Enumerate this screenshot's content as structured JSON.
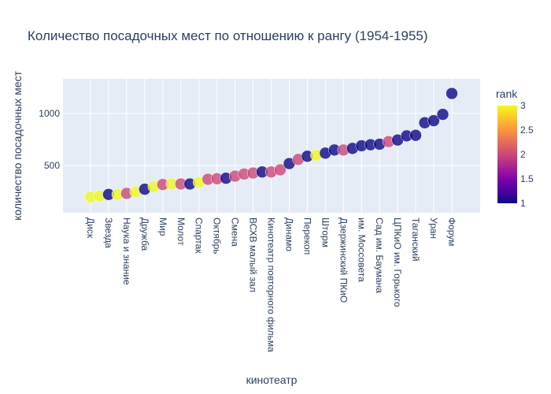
{
  "title": "Количество посадочных мест по отношению к рангу (1954-1955)",
  "chart_data": {
    "type": "scatter",
    "xlabel": "кинотеатр",
    "ylabel": "количество посадочных мест",
    "y_ticks": [
      500,
      1000
    ],
    "ylim": [
      50,
      1330
    ],
    "grid": true,
    "colorbar": {
      "title": "rank",
      "min": 1,
      "max": 3,
      "ticks": [
        "1",
        "1.5",
        "2",
        "2.5",
        "3"
      ],
      "colors": [
        "#0d0887",
        "#46039f",
        "#7201a8",
        "#9c179e",
        "#bd3786",
        "#d8576b",
        "#ed7953",
        "#fb9f3a",
        "#fdca26",
        "#f0f921"
      ]
    },
    "x_tick_labels": [
      "Диск",
      "Звезда",
      "Наука и знание",
      "Дружба",
      "Мир",
      "Молот",
      "Спартак",
      "Октябрь",
      "Смена",
      "ВСХВ малый зал",
      "Кинотеатр повторного фильма",
      "Динамо",
      "Перекоп",
      "Шторм",
      "Дзержинский ПКиО",
      "им. Моссовета",
      "Сад им. Баумана",
      "ЦПКиО им. Горького",
      "Таганский",
      "Уран",
      "Форум"
    ],
    "points": [
      {
        "y": 200,
        "rank": 3
      },
      {
        "y": 210,
        "rank": 3
      },
      {
        "y": 225,
        "rank": 1
      },
      {
        "y": 225,
        "rank": 3
      },
      {
        "y": 235,
        "rank": 2
      },
      {
        "y": 250,
        "rank": 3
      },
      {
        "y": 275,
        "rank": 1
      },
      {
        "y": 300,
        "rank": 3
      },
      {
        "y": 320,
        "rank": 2
      },
      {
        "y": 325,
        "rank": 3
      },
      {
        "y": 325,
        "rank": 2
      },
      {
        "y": 325,
        "rank": 1
      },
      {
        "y": 340,
        "rank": 3
      },
      {
        "y": 370,
        "rank": 2
      },
      {
        "y": 375,
        "rank": 2
      },
      {
        "y": 380,
        "rank": 1
      },
      {
        "y": 400,
        "rank": 2
      },
      {
        "y": 420,
        "rank": 2
      },
      {
        "y": 430,
        "rank": 2
      },
      {
        "y": 440,
        "rank": 1
      },
      {
        "y": 440,
        "rank": 2
      },
      {
        "y": 460,
        "rank": 2
      },
      {
        "y": 520,
        "rank": 1
      },
      {
        "y": 560,
        "rank": 2
      },
      {
        "y": 590,
        "rank": 1
      },
      {
        "y": 600,
        "rank": 3
      },
      {
        "y": 620,
        "rank": 1
      },
      {
        "y": 650,
        "rank": 1
      },
      {
        "y": 650,
        "rank": 2
      },
      {
        "y": 665,
        "rank": 1
      },
      {
        "y": 690,
        "rank": 1
      },
      {
        "y": 700,
        "rank": 1
      },
      {
        "y": 705,
        "rank": 1
      },
      {
        "y": 730,
        "rank": 2
      },
      {
        "y": 745,
        "rank": 1
      },
      {
        "y": 785,
        "rank": 1
      },
      {
        "y": 790,
        "rank": 1
      },
      {
        "y": 910,
        "rank": 1
      },
      {
        "y": 930,
        "rank": 1
      },
      {
        "y": 990,
        "rank": 1
      },
      {
        "y": 1190,
        "rank": 1
      }
    ]
  }
}
